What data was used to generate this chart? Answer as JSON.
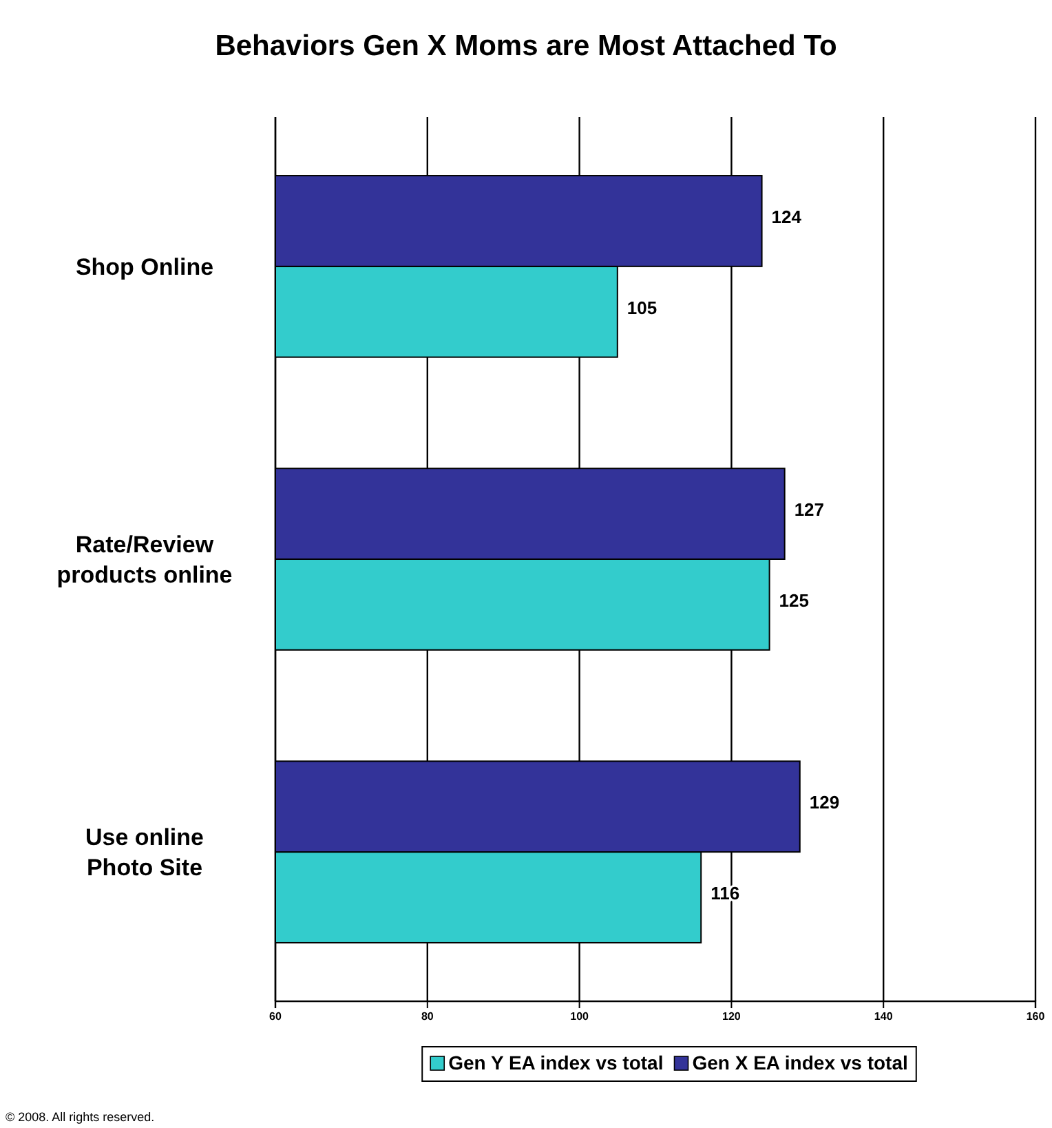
{
  "chart_data": {
    "type": "bar",
    "orientation": "horizontal",
    "title": "Behaviors Gen X Moms are Most Attached To",
    "categories": [
      "Shop Online",
      "Rate/Review products online",
      "Use online Photo Site"
    ],
    "series": [
      {
        "name": "Gen Y EA index vs total",
        "color": "#33cccc",
        "values": [
          105,
          125,
          116
        ]
      },
      {
        "name": "Gen X EA index vs total",
        "color": "#333399",
        "values": [
          124,
          127,
          129
        ]
      }
    ],
    "xlim": [
      60,
      160
    ],
    "xticks": [
      60,
      80,
      100,
      120,
      140,
      160
    ],
    "grid": "x",
    "legend": "bottom",
    "data_labels": true,
    "annotations": [
      "© 2008.   All rights reserved."
    ]
  }
}
